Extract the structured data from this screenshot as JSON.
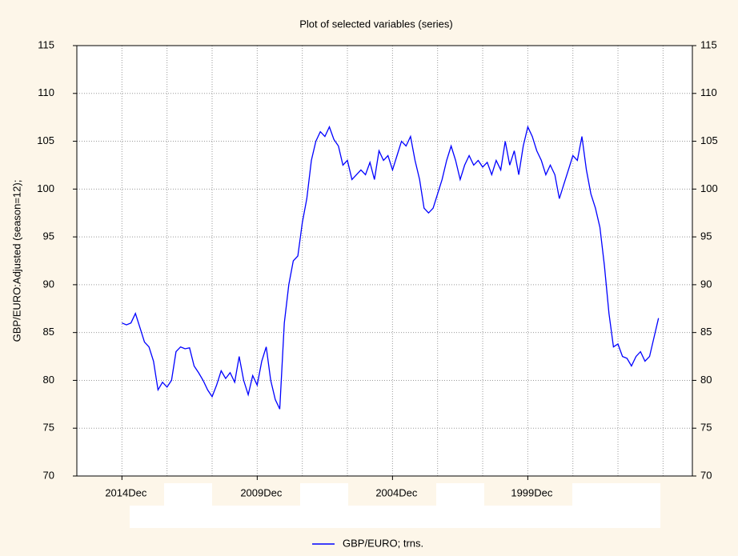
{
  "chart_data": {
    "type": "line",
    "title": "Plot of selected variables (series)",
    "y_label": "GBP/EURO:Adjusted (season=12);",
    "series": [
      {
        "name": "GBP/EURO; trns.",
        "color": "#0000ff",
        "values": [
          86,
          85.8,
          86,
          87,
          85.5,
          84,
          83.5,
          82,
          79,
          79.8,
          79.3,
          80,
          83,
          83.5,
          83.3,
          83.4,
          81.5,
          80.8,
          80,
          79,
          78.3,
          79.5,
          81,
          80.2,
          80.8,
          79.8,
          82.5,
          80,
          78.5,
          80.5,
          79.5,
          82,
          83.5,
          80,
          78,
          77,
          86,
          90,
          92.5,
          93,
          96.5,
          99,
          103,
          105,
          106,
          105.5,
          106.5,
          105.2,
          104.5,
          102.5,
          103,
          101,
          101.5,
          102,
          101.5,
          102.8,
          101,
          104,
          103,
          103.5,
          102,
          103.5,
          105,
          104.5,
          105.5,
          103,
          101,
          98,
          97.5,
          98,
          99.5,
          101,
          103,
          104.5,
          103,
          101,
          102.5,
          103.5,
          102.5,
          103,
          102.3,
          102.8,
          101.5,
          103,
          102,
          105,
          102.5,
          104,
          101.5,
          104.5,
          106.5,
          105.5,
          104,
          103,
          101.5,
          102.5,
          101.5,
          99,
          100.5,
          102,
          103.5,
          103,
          105.5,
          102,
          99.5,
          98,
          96,
          92,
          87,
          83.5,
          83.8,
          82.5,
          82.3,
          81.5,
          82.5,
          83,
          82,
          82.5,
          84.5,
          86.5
        ]
      }
    ],
    "xlim": [
      -10,
      126.5
    ],
    "xticks": [
      {
        "value": 0,
        "label": "2014Dec"
      },
      {
        "value": 30,
        "label": "2009Dec"
      },
      {
        "value": 60,
        "label": "2004Dec"
      },
      {
        "value": 90,
        "label": "1999Dec"
      }
    ],
    "xgridticks": [
      -10,
      0,
      10,
      20,
      30,
      40,
      50,
      60,
      70,
      80,
      90,
      100,
      110,
      120
    ],
    "ylim": [
      70,
      115
    ],
    "yticks": [
      70,
      75,
      80,
      85,
      90,
      95,
      100,
      105,
      110,
      115
    ],
    "right_axis": true,
    "grid": true,
    "legend": "bottom"
  }
}
